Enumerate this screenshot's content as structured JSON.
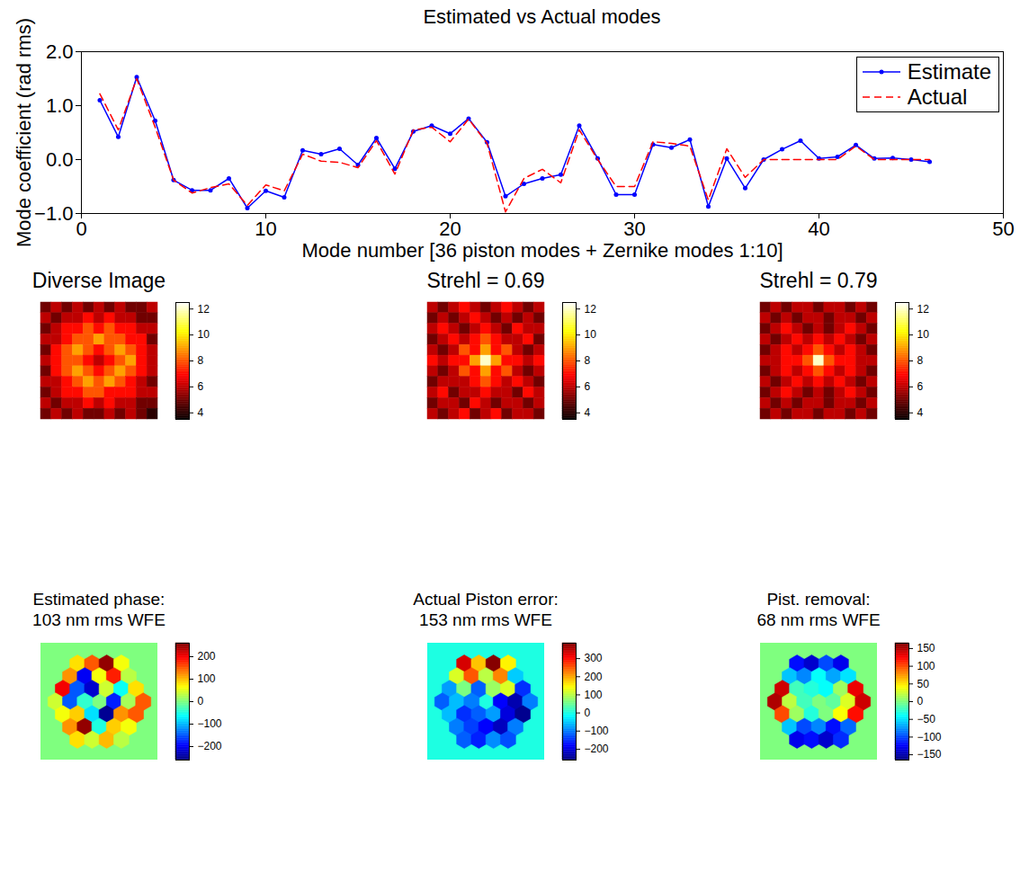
{
  "chart_data": [
    {
      "type": "line",
      "title": "Estimated vs Actual modes",
      "xlabel": "Mode number [36 piston modes + Zernike modes 1:10]",
      "ylabel": "Mode coefficient (rad rms)",
      "x": [
        1,
        2,
        3,
        4,
        5,
        6,
        7,
        8,
        9,
        10,
        11,
        12,
        13,
        14,
        15,
        16,
        17,
        18,
        19,
        20,
        21,
        22,
        23,
        24,
        25,
        26,
        27,
        28,
        29,
        30,
        31,
        32,
        33,
        34,
        35,
        36,
        37,
        38,
        39,
        40,
        41,
        42,
        43,
        44,
        45,
        46
      ],
      "series": [
        {
          "name": "Estimate",
          "color": "#0000ff",
          "marker": "dot",
          "line_style": "solid",
          "values": [
            1.1,
            0.42,
            1.53,
            0.72,
            -0.38,
            -0.57,
            -0.57,
            -0.35,
            -0.9,
            -0.58,
            -0.7,
            0.17,
            0.1,
            0.2,
            -0.1,
            0.4,
            -0.17,
            0.52,
            0.63,
            0.48,
            0.76,
            0.32,
            -0.68,
            -0.45,
            -0.35,
            -0.28,
            0.63,
            0.02,
            -0.65,
            -0.65,
            0.28,
            0.22,
            0.37,
            -0.87,
            0.02,
            -0.53,
            0.0,
            0.19,
            0.35,
            0.02,
            0.05,
            0.27,
            0.02,
            0.03,
            0.0,
            -0.04
          ]
        },
        {
          "name": "Actual",
          "color": "#ff0000",
          "marker": "none",
          "line_style": "dashed",
          "values": [
            1.22,
            0.55,
            1.5,
            0.6,
            -0.38,
            -0.62,
            -0.52,
            -0.45,
            -0.85,
            -0.47,
            -0.58,
            0.1,
            -0.03,
            -0.05,
            -0.15,
            0.35,
            -0.27,
            0.55,
            0.6,
            0.33,
            0.75,
            0.3,
            -0.97,
            -0.35,
            -0.18,
            -0.43,
            0.55,
            0.0,
            -0.5,
            -0.5,
            0.33,
            0.3,
            0.25,
            -0.75,
            0.2,
            -0.33,
            0.0,
            0.0,
            0.0,
            0.0,
            0.0,
            0.25,
            0.0,
            0.0,
            0.0,
            0.0
          ]
        }
      ],
      "xlim": [
        0,
        50
      ],
      "xticks": [
        0,
        10,
        20,
        30,
        40,
        50
      ],
      "ylim": [
        -1,
        2
      ],
      "yticks": [
        -1,
        0,
        1,
        2
      ],
      "grid": false,
      "legend": "top-right"
    },
    {
      "type": "heatmap",
      "title": "Diverse Image",
      "colorbar": {
        "range": [
          3.5,
          12.5
        ],
        "ticks": [
          4,
          6,
          8,
          10,
          12
        ]
      },
      "cells": [
        [
          5,
          6,
          5,
          6,
          5,
          6,
          5,
          6,
          5,
          5,
          6
        ],
        [
          6,
          5,
          6,
          6,
          7,
          6,
          7,
          6,
          6,
          5,
          5
        ],
        [
          5,
          6,
          7,
          7,
          8,
          7,
          8,
          7,
          7,
          6,
          6
        ],
        [
          6,
          6,
          7,
          8,
          8,
          9,
          8,
          8,
          7,
          7,
          5
        ],
        [
          5,
          7,
          8,
          9,
          8,
          7,
          8,
          9,
          8,
          7,
          6
        ],
        [
          6,
          7,
          8,
          8,
          7,
          6,
          7,
          8,
          9,
          7,
          6
        ],
        [
          5,
          7,
          8,
          9,
          8,
          7,
          8,
          9,
          8,
          7,
          6
        ],
        [
          6,
          6,
          7,
          8,
          9,
          8,
          9,
          8,
          7,
          6,
          5
        ],
        [
          5,
          6,
          7,
          7,
          8,
          8,
          7,
          7,
          7,
          6,
          6
        ],
        [
          6,
          5,
          6,
          6,
          7,
          6,
          7,
          6,
          6,
          5,
          5
        ],
        [
          5,
          6,
          5,
          6,
          5,
          5,
          6,
          5,
          6,
          5,
          4
        ]
      ]
    },
    {
      "type": "heatmap",
      "title": "Strehl = 0.69",
      "colorbar": {
        "range": [
          3.5,
          12.5
        ],
        "ticks": [
          4,
          6,
          8,
          10,
          12
        ]
      },
      "cells": [
        [
          6,
          5,
          6,
          7,
          6,
          5,
          6,
          7,
          6,
          5,
          6
        ],
        [
          5,
          6,
          5,
          6,
          7,
          6,
          5,
          6,
          5,
          6,
          5
        ],
        [
          6,
          7,
          6,
          5,
          6,
          7,
          6,
          5,
          7,
          6,
          6
        ],
        [
          5,
          6,
          7,
          6,
          7,
          8,
          7,
          6,
          6,
          7,
          5
        ],
        [
          6,
          5,
          6,
          8,
          7,
          9,
          7,
          8,
          6,
          5,
          6
        ],
        [
          7,
          6,
          7,
          7,
          9,
          12,
          9,
          7,
          7,
          6,
          7
        ],
        [
          6,
          5,
          6,
          8,
          7,
          9,
          7,
          8,
          6,
          5,
          6
        ],
        [
          5,
          6,
          6,
          6,
          7,
          8,
          7,
          6,
          7,
          6,
          5
        ],
        [
          6,
          7,
          5,
          6,
          6,
          7,
          6,
          6,
          5,
          7,
          6
        ],
        [
          5,
          6,
          6,
          5,
          7,
          6,
          5,
          6,
          6,
          5,
          6
        ],
        [
          6,
          5,
          6,
          7,
          5,
          6,
          7,
          5,
          6,
          6,
          5
        ]
      ]
    },
    {
      "type": "heatmap",
      "title": "Strehl = 0.79",
      "colorbar": {
        "range": [
          3.5,
          12.5
        ],
        "ticks": [
          4,
          6,
          8,
          10,
          12
        ]
      },
      "cells": [
        [
          5,
          6,
          5,
          6,
          6,
          5,
          6,
          6,
          5,
          6,
          5
        ],
        [
          6,
          5,
          6,
          5,
          6,
          6,
          5,
          6,
          6,
          5,
          6
        ],
        [
          5,
          6,
          7,
          6,
          5,
          6,
          5,
          6,
          7,
          6,
          5
        ],
        [
          6,
          5,
          6,
          7,
          6,
          7,
          6,
          7,
          6,
          5,
          6
        ],
        [
          5,
          6,
          7,
          6,
          7,
          8,
          7,
          6,
          7,
          6,
          5
        ],
        [
          6,
          6,
          7,
          7,
          8,
          12,
          8,
          7,
          7,
          6,
          6
        ],
        [
          5,
          6,
          7,
          6,
          7,
          8,
          7,
          6,
          7,
          6,
          5
        ],
        [
          6,
          5,
          6,
          7,
          6,
          7,
          6,
          7,
          6,
          5,
          6
        ],
        [
          5,
          6,
          7,
          6,
          5,
          6,
          5,
          6,
          7,
          6,
          5
        ],
        [
          6,
          5,
          6,
          5,
          6,
          6,
          5,
          6,
          6,
          5,
          6
        ],
        [
          5,
          6,
          5,
          6,
          6,
          5,
          6,
          6,
          5,
          6,
          5
        ]
      ]
    },
    {
      "type": "segments",
      "title": "Estimated phase: 103 nm rms WFE",
      "colorbar": {
        "range": [
          -260,
          260
        ],
        "ticks": [
          -200,
          -100,
          0,
          100,
          200
        ]
      },
      "background": 0,
      "values": [
        80,
        150,
        250,
        60,
        120,
        -200,
        60,
        180,
        30,
        200,
        -150,
        -220,
        40,
        -60,
        80,
        40,
        -150,
        -40,
        -180,
        20,
        150,
        60,
        90,
        -80,
        -250,
        120,
        150,
        120,
        250,
        -50,
        90,
        60,
        80,
        40,
        100,
        30
      ]
    },
    {
      "type": "segments",
      "title": "Actual Piston error: 153 nm rms WFE",
      "colorbar": {
        "range": [
          -260,
          385
        ],
        "ticks": [
          -200,
          -100,
          0,
          100,
          200,
          300
        ]
      },
      "background": 0,
      "values": [
        330,
        180,
        380,
        150,
        120,
        250,
        100,
        220,
        -50,
        -80,
        60,
        -120,
        80,
        120,
        -150,
        -120,
        -60,
        -100,
        -180,
        -230,
        -100,
        -60,
        -150,
        -120,
        -80,
        -200,
        -250,
        -100,
        -140,
        -180,
        -220,
        -100,
        -120,
        -160,
        -90,
        -130
      ]
    },
    {
      "type": "segments",
      "title": "Pist. removal: 68 nm rms WFE",
      "colorbar": {
        "range": [
          -165,
          165
        ],
        "ticks": [
          -150,
          -100,
          -50,
          0,
          50,
          100,
          150
        ]
      },
      "background": 0,
      "values": [
        -120,
        -140,
        -100,
        -130,
        -60,
        -80,
        -40,
        -70,
        -50,
        140,
        -20,
        -30,
        -40,
        10,
        130,
        150,
        20,
        -20,
        -10,
        30,
        140,
        100,
        10,
        -30,
        0,
        40,
        120,
        -60,
        -100,
        -80,
        -120,
        -90,
        -130,
        -120,
        -140,
        -110
      ]
    }
  ]
}
